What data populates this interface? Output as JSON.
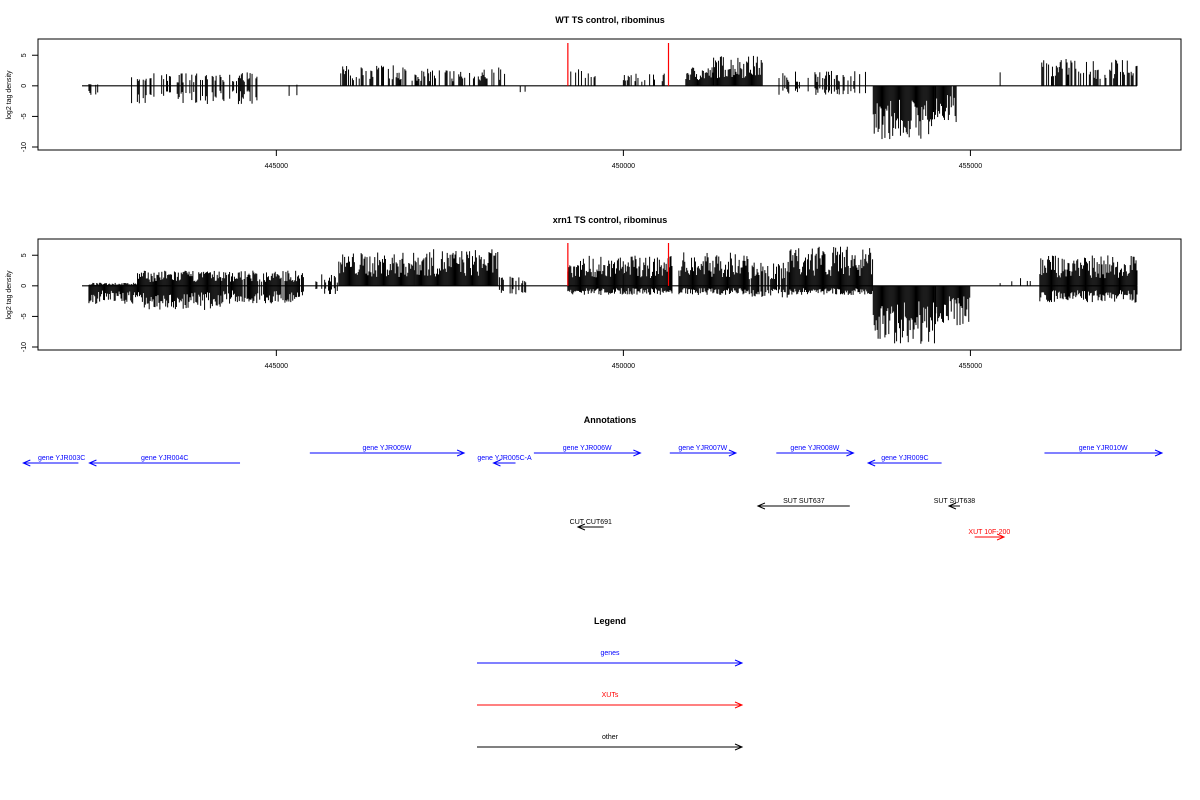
{
  "chart_data": [
    {
      "type": "bar",
      "title": "WT TS control, ribominus",
      "ylabel": "log2 tag density",
      "xlabel": "",
      "xlim": [
        442200,
        457600
      ],
      "ylim": [
        -10,
        7
      ],
      "x_ticks": [
        445000,
        450000,
        455000
      ],
      "x_tick_labels": [
        "445000",
        "450000",
        "455000"
      ],
      "y_ticks": [
        -10,
        -5,
        0,
        5
      ],
      "y_tick_labels": [
        "-10",
        "-5",
        "0",
        "5"
      ],
      "grid": false,
      "marker_color": "#ff0000",
      "marker_positions": [
        449200,
        450650
      ],
      "profile": [
        {
          "from": 442300,
          "to": 442450,
          "max": 0.3,
          "min": -1.8,
          "density": 0.5
        },
        {
          "from": 442900,
          "to": 444800,
          "max": 2.2,
          "min": -3.0,
          "density": 0.5
        },
        {
          "from": 445100,
          "to": 445300,
          "max": 0.2,
          "min": -1.8,
          "density": 0.2
        },
        {
          "from": 445900,
          "to": 446900,
          "max": 3.5,
          "min": 0,
          "density": 0.6
        },
        {
          "from": 446900,
          "to": 447700,
          "max": 2.8,
          "min": 0,
          "density": 0.6
        },
        {
          "from": 447700,
          "to": 448300,
          "max": 3.0,
          "min": 0,
          "density": 0.5
        },
        {
          "from": 448500,
          "to": 448600,
          "max": 0,
          "min": -1.2,
          "density": 0.3
        },
        {
          "from": 449200,
          "to": 449800,
          "max": 3.0,
          "min": 0,
          "density": 0.4
        },
        {
          "from": 450000,
          "to": 450600,
          "max": 2.0,
          "min": 0,
          "density": 0.4
        },
        {
          "from": 450900,
          "to": 451300,
          "max": 3.2,
          "min": 0,
          "density": 1.0
        },
        {
          "from": 451300,
          "to": 452000,
          "max": 5.0,
          "min": 0,
          "density": 1.0
        },
        {
          "from": 452200,
          "to": 453500,
          "max": 2.5,
          "min": -1.5,
          "density": 0.5
        },
        {
          "from": 453600,
          "to": 454500,
          "max": 0,
          "min": -8.8,
          "density": 1.0
        },
        {
          "from": 454500,
          "to": 454800,
          "max": 0,
          "min": -6.0,
          "density": 0.9
        },
        {
          "from": 454900,
          "to": 455100,
          "max": 0,
          "min": -1.0,
          "density": 0.2
        },
        {
          "from": 455400,
          "to": 455500,
          "max": 2.5,
          "min": 0,
          "density": 0.3
        },
        {
          "from": 456000,
          "to": 457400,
          "max": 4.5,
          "min": 0,
          "density": 0.6
        }
      ]
    },
    {
      "type": "bar",
      "title": "xrn1 TS control, ribominus",
      "ylabel": "log2 tag density",
      "xlabel": "",
      "xlim": [
        442200,
        457600
      ],
      "ylim": [
        -10,
        7
      ],
      "x_ticks": [
        445000,
        450000,
        455000
      ],
      "x_tick_labels": [
        "445000",
        "450000",
        "455000"
      ],
      "y_ticks": [
        -10,
        -5,
        0,
        5
      ],
      "y_tick_labels": [
        "-10",
        "-5",
        "0",
        "5"
      ],
      "grid": false,
      "marker_color": "#ff0000",
      "marker_positions": [
        449200,
        450650
      ],
      "profile": [
        {
          "from": 442300,
          "to": 443000,
          "max": 0.5,
          "min": -3.0,
          "density": 1.0
        },
        {
          "from": 443000,
          "to": 444200,
          "max": 2.5,
          "min": -4.0,
          "density": 1.0
        },
        {
          "from": 444200,
          "to": 445400,
          "max": 2.5,
          "min": -3.0,
          "density": 0.9
        },
        {
          "from": 445500,
          "to": 445900,
          "max": 2.0,
          "min": -1.5,
          "density": 0.4
        },
        {
          "from": 445900,
          "to": 447000,
          "max": 5.5,
          "min": 0,
          "density": 1.0
        },
        {
          "from": 447000,
          "to": 448200,
          "max": 6.0,
          "min": 0,
          "density": 1.0
        },
        {
          "from": 448200,
          "to": 448600,
          "max": 1.5,
          "min": -1.5,
          "density": 0.4
        },
        {
          "from": 449200,
          "to": 450000,
          "max": 5.0,
          "min": -1.5,
          "density": 1.0
        },
        {
          "from": 450000,
          "to": 450700,
          "max": 5.0,
          "min": -1.5,
          "density": 1.0
        },
        {
          "from": 450800,
          "to": 451800,
          "max": 5.5,
          "min": -1.5,
          "density": 1.0
        },
        {
          "from": 451800,
          "to": 452400,
          "max": 4.0,
          "min": -2.0,
          "density": 0.8
        },
        {
          "from": 452400,
          "to": 453600,
          "max": 6.5,
          "min": -1.5,
          "density": 1.0
        },
        {
          "from": 453600,
          "to": 454500,
          "max": 0,
          "min": -9.5,
          "density": 1.0
        },
        {
          "from": 454500,
          "to": 455000,
          "max": 0,
          "min": -6.5,
          "density": 1.0
        },
        {
          "from": 455400,
          "to": 455900,
          "max": 1.5,
          "min": 0,
          "density": 0.2
        },
        {
          "from": 456000,
          "to": 457400,
          "max": 5.0,
          "min": -2.8,
          "density": 1.0
        }
      ]
    }
  ],
  "annotations": {
    "title": "Annotations",
    "features": [
      {
        "label": "gene YJR003C",
        "type": "gene",
        "strand": "-",
        "start": 442200,
        "end": 443700
      },
      {
        "label": "gene YJR004C",
        "type": "gene",
        "strand": "-",
        "start": 444000,
        "end": 448100
      },
      {
        "label": "gene YJR005W",
        "type": "gene",
        "strand": "+",
        "start": 450000,
        "end": 454200
      },
      {
        "label": "gene YJR005C-A",
        "type": "gene",
        "strand": "-",
        "start": 455000,
        "end": 455600
      },
      {
        "label": "gene YJR006W",
        "type": "gene",
        "strand": "+",
        "start": 456100,
        "end": 459000
      },
      {
        "label": "gene YJR007W",
        "type": "gene",
        "strand": "+",
        "start": 459800,
        "end": 461600
      },
      {
        "label": "gene YJR008W",
        "type": "gene",
        "strand": "+",
        "start": 462700,
        "end": 464800
      },
      {
        "label": "gene YJR009C",
        "type": "gene",
        "strand": "-",
        "start": 465200,
        "end": 467200
      },
      {
        "label": "gene YJR010W",
        "type": "gene",
        "strand": "+",
        "start": 470000,
        "end": 473200
      },
      {
        "label": "SUT SUT637",
        "type": "other",
        "strand": "-",
        "start": 462200,
        "end": 464700
      },
      {
        "label": "SUT SUT638",
        "type": "other",
        "strand": "-",
        "start": 467400,
        "end": 467700
      },
      {
        "label": "CUT CUT691",
        "type": "other",
        "strand": "-",
        "start": 457300,
        "end": 458000
      },
      {
        "label": "XUT 10F-200",
        "type": "xut",
        "strand": "+",
        "start": 468100,
        "end": 468900
      }
    ]
  },
  "legend": {
    "title": "Legend",
    "items": [
      {
        "label": "genes",
        "color": "#0000ff"
      },
      {
        "label": "XUTs",
        "color": "#ff0000"
      },
      {
        "label": "other",
        "color": "#000000"
      }
    ]
  },
  "colors": {
    "gene": "#0000ff",
    "xut": "#ff0000",
    "other": "#000000"
  }
}
